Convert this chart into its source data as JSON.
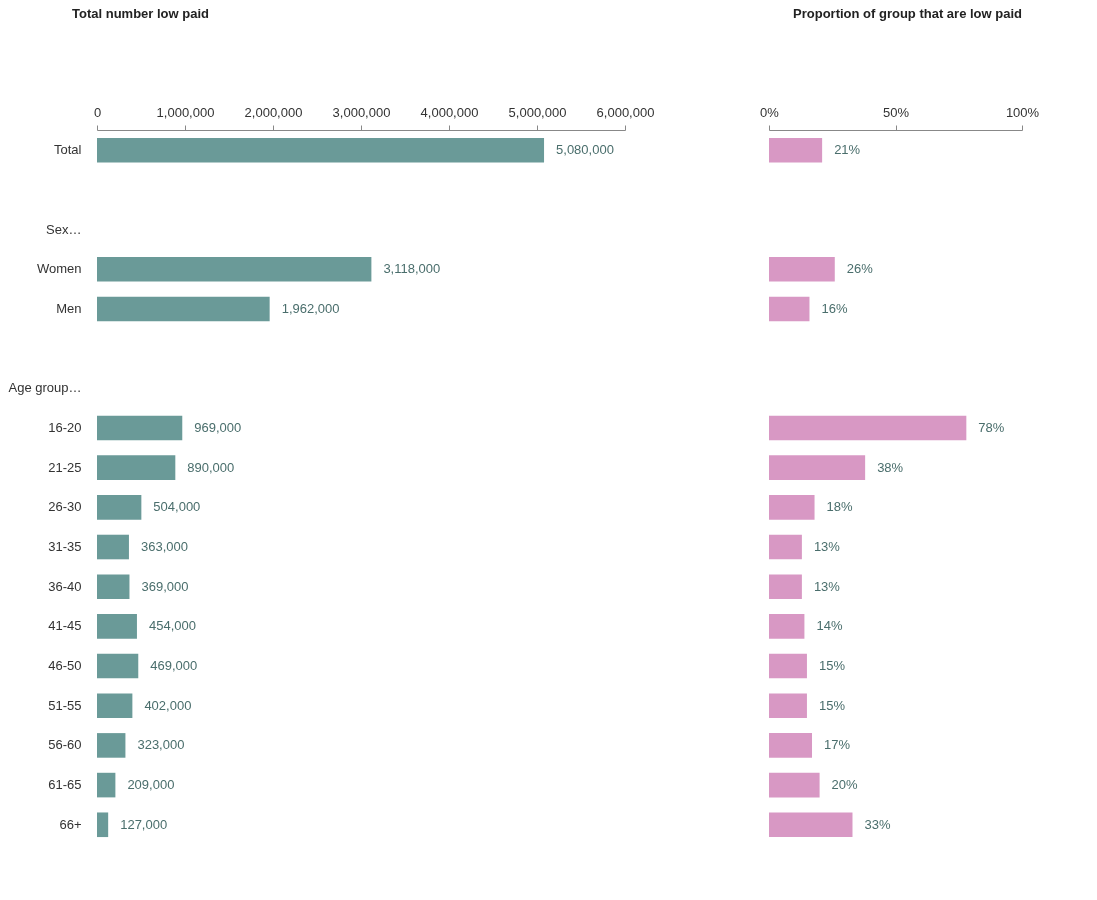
{
  "chart_data": [
    {
      "type": "bar",
      "orientation": "horizontal",
      "title": "Total number low paid",
      "categories": [
        "Total",
        null,
        "Sex…",
        "Women",
        "Men",
        null,
        "Age group…",
        "16-20",
        "21-25",
        "26-30",
        "31-35",
        "36-40",
        "41-45",
        "46-50",
        "51-55",
        "56-60",
        "61-65",
        "66+"
      ],
      "values": [
        5080000,
        null,
        null,
        3118000,
        1962000,
        null,
        null,
        969000,
        890000,
        504000,
        363000,
        369000,
        454000,
        469000,
        402000,
        323000,
        209000,
        127000
      ],
      "value_labels": [
        "5,080,000",
        null,
        null,
        "3,118,000",
        "1,962,000",
        null,
        null,
        "969,000",
        "890,000",
        "504,000",
        "363,000",
        "369,000",
        "454,000",
        "469,000",
        "402,000",
        "323,000",
        "209,000",
        "127,000"
      ],
      "color": "#6a9a98",
      "xlim": [
        0,
        6000000
      ],
      "xticks": [
        0,
        {
          "value": 1000000,
          "label": "1,000,000"
        },
        {
          "value": 2000000,
          "label": "2,000,000"
        },
        {
          "value": 3000000,
          "label": "3,000,000"
        },
        {
          "value": 4000000,
          "label": "4,000,000"
        },
        {
          "value": 5000000,
          "label": "5,000,000"
        },
        {
          "value": 6000000,
          "label": "6,000,000"
        }
      ]
    },
    {
      "type": "bar",
      "orientation": "horizontal",
      "title": "Proportion of group that are low paid",
      "values": [
        21,
        null,
        null,
        26,
        16,
        null,
        null,
        78,
        38,
        18,
        13,
        13,
        14,
        15,
        15,
        17,
        20,
        33
      ],
      "value_labels": [
        "21%",
        null,
        null,
        "26%",
        "16%",
        null,
        null,
        "78%",
        "38%",
        "18%",
        "13%",
        "13%",
        "14%",
        "15%",
        "15%",
        "17%",
        "20%",
        "33%"
      ],
      "color": "#d898c4",
      "xlim": [
        0,
        100
      ],
      "xticks": [
        {
          "value": 0,
          "label": "0%"
        },
        {
          "value": 50,
          "label": "50%"
        },
        {
          "value": 100,
          "label": "100%"
        }
      ]
    }
  ]
}
